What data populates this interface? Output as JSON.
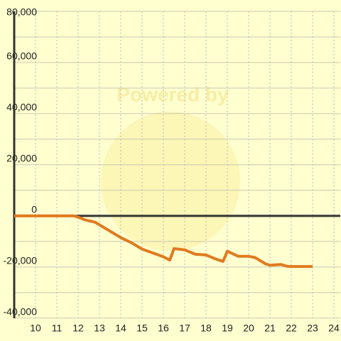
{
  "chart_data": {
    "type": "line",
    "watermark": "Powered by",
    "x": [
      9,
      11.8,
      12,
      12.3,
      12.8,
      13,
      13.3,
      14,
      14.5,
      15,
      15.5,
      16,
      16.3,
      16.5,
      17,
      17.5,
      18,
      18.5,
      18.8,
      19,
      19.5,
      20,
      20.3,
      20.8,
      21,
      21.5,
      21.8,
      22,
      23
    ],
    "series": [
      {
        "color": "#e07b20",
        "values": [
          0,
          0,
          -500,
          -1500,
          -2500,
          -3500,
          -5000,
          -8500,
          -10500,
          -13000,
          -14500,
          -16000,
          -17300,
          -12800,
          -13300,
          -15000,
          -15300,
          -17000,
          -17800,
          -13800,
          -15800,
          -15800,
          -16300,
          -18800,
          -19300,
          -19000,
          -19700,
          -19800,
          -19800
        ]
      }
    ],
    "xlim": [
      9,
      24.3
    ],
    "xticks": [
      10,
      11,
      12,
      13,
      14,
      15,
      16,
      17,
      18,
      19,
      20,
      21,
      22,
      23,
      24
    ],
    "ylim": [
      -42000,
      80000
    ],
    "yticks": [
      {
        "value": -40000,
        "label": "-40,000"
      },
      {
        "value": -20000,
        "label": "-20,000"
      },
      0,
      {
        "value": 20000,
        "label": "20,000"
      },
      {
        "value": 40000,
        "label": "40,000"
      },
      {
        "value": 60000,
        "label": "60,000"
      },
      {
        "value": 80000,
        "label": "80,000"
      }
    ],
    "y_minor_ticks": [
      -30000,
      -10000,
      10000,
      30000,
      50000,
      70000
    ],
    "grid": true
  }
}
